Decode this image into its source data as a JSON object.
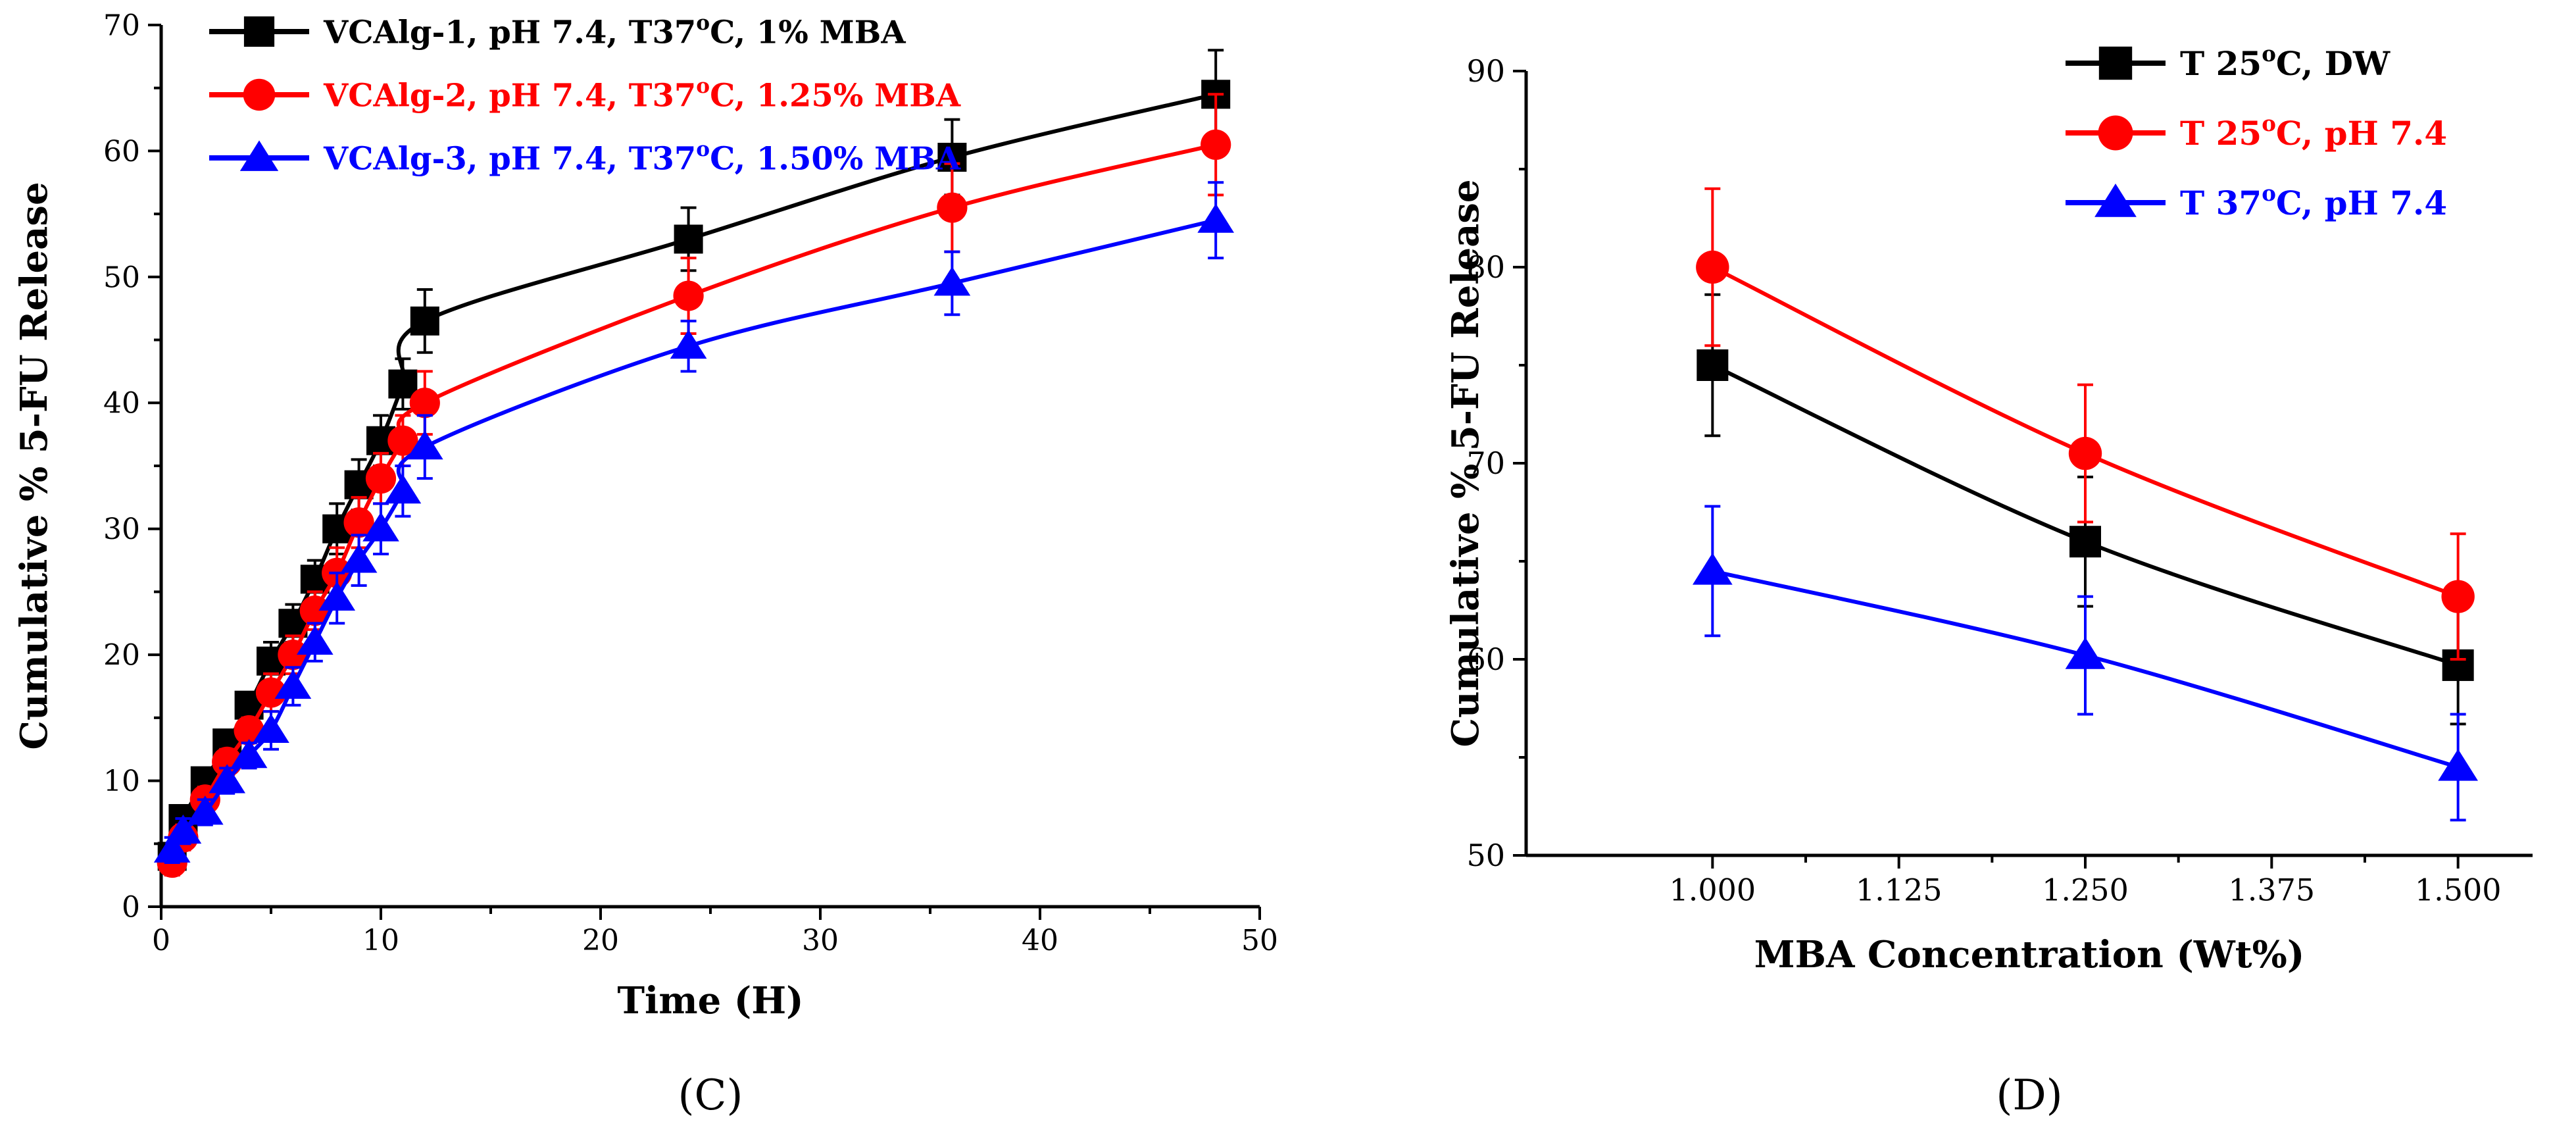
{
  "chart_data": [
    {
      "type": "line",
      "panel_label": "(C)",
      "xlabel": "Time (H)",
      "ylabel": "Cumulative % 5-FU Release",
      "xlim": [
        0,
        50
      ],
      "ylim": [
        0,
        70
      ],
      "x_ticks": [
        0,
        10,
        20,
        30,
        40,
        50
      ],
      "y_ticks": [
        0,
        10,
        20,
        30,
        40,
        50,
        60,
        70
      ],
      "x_tick_labels": [
        "0",
        "10",
        "20",
        "30",
        "40",
        "50"
      ],
      "y_tick_labels": [
        "0",
        "10",
        "20",
        "30",
        "40",
        "50",
        "60",
        "70"
      ],
      "grid": false,
      "legend_position": "top-left",
      "series": [
        {
          "name": "VCAlg-1, pH 7.4, T37°C, 1% MBA",
          "legend": {
            "pre": "VCAlg-1, pH 7.4, T37",
            "sup": "o",
            "post": "C, 1% MBA"
          },
          "color": "#000000",
          "marker": "square",
          "x": [
            0.5,
            1,
            2,
            3,
            4,
            5,
            6,
            7,
            8,
            9,
            10,
            11,
            12,
            24,
            36,
            48
          ],
          "y": [
            4,
            7,
            10,
            13,
            16,
            19.5,
            22.5,
            26,
            30,
            33.5,
            37,
            41.5,
            46.5,
            53,
            59.5,
            64.5
          ],
          "err": [
            1,
            1,
            1,
            1,
            1,
            1.5,
            1.5,
            1.5,
            2,
            2,
            2,
            2,
            2.5,
            2.5,
            3,
            3.5
          ]
        },
        {
          "name": "VCAlg-2, pH 7.4, T37°C, 1.25% MBA",
          "legend": {
            "pre": "VCAlg-2, pH 7.4, T37",
            "sup": "o",
            "post": "C, 1.25% MBA"
          },
          "color": "#ff0000",
          "marker": "circle",
          "x": [
            0.5,
            1,
            2,
            3,
            4,
            5,
            6,
            7,
            8,
            9,
            10,
            11,
            12,
            24,
            36,
            48
          ],
          "y": [
            3.5,
            5.5,
            8.5,
            11.5,
            14,
            17,
            20,
            23.5,
            26.5,
            30.5,
            34,
            37,
            40,
            48.5,
            55.5,
            60.5
          ],
          "err": [
            1,
            1,
            1,
            1,
            1,
            1.5,
            1.5,
            1.5,
            2,
            2,
            2,
            2,
            2.5,
            3,
            3.5,
            4
          ]
        },
        {
          "name": "VCAlg-3, pH 7.4, T37°C, 1.50% MBA",
          "legend": {
            "pre": "VCAlg-3, pH 7.4, T37",
            "sup": "o",
            "post": "C, 1.50% MBA"
          },
          "color": "#0000ff",
          "marker": "triangle",
          "x": [
            0.5,
            1,
            2,
            3,
            4,
            5,
            6,
            7,
            8,
            9,
            10,
            11,
            12,
            24,
            36,
            48
          ],
          "y": [
            4.5,
            6,
            7.5,
            10,
            12,
            14,
            17.5,
            21,
            24.5,
            27.5,
            30,
            33,
            36.5,
            44.5,
            49.5,
            54.5
          ],
          "err": [
            1,
            1,
            1,
            1,
            1,
            1.5,
            1.5,
            1.5,
            2,
            2,
            2,
            2,
            2.5,
            2,
            2.5,
            3
          ]
        }
      ]
    },
    {
      "type": "line",
      "panel_label": "(D)",
      "xlabel": "MBA Concentration (Wt%)",
      "ylabel": "Cumulative % 5-FU Release",
      "xlim": [
        0.875,
        1.55
      ],
      "ylim": [
        50,
        90
      ],
      "x_ticks": [
        1.0,
        1.125,
        1.25,
        1.375,
        1.5
      ],
      "y_ticks": [
        50,
        60,
        70,
        80,
        90
      ],
      "x_tick_labels": [
        "1.000",
        "1.125",
        "1.250",
        "1.375",
        "1.500"
      ],
      "y_tick_labels": [
        "50",
        "60",
        "70",
        "80",
        "90"
      ],
      "grid": false,
      "legend_position": "top-right",
      "series": [
        {
          "name": "T 25°C, DW",
          "legend": {
            "pre": "T 25",
            "sup": "o",
            "post": "C, DW"
          },
          "color": "#000000",
          "marker": "square",
          "x": [
            1.0,
            1.25,
            1.5
          ],
          "y": [
            75,
            66,
            59.7
          ],
          "err": [
            3.6,
            3.3,
            3
          ]
        },
        {
          "name": "T 25°C, pH 7.4",
          "legend": {
            "pre": "T 25",
            "sup": "o",
            "post": "C, pH 7.4"
          },
          "color": "#ff0000",
          "marker": "circle",
          "x": [
            1.0,
            1.25,
            1.5
          ],
          "y": [
            80,
            70.5,
            63.2
          ],
          "err": [
            4,
            3.5,
            3.2
          ]
        },
        {
          "name": "T 37°C, pH 7.4",
          "legend": {
            "pre": "T 37",
            "sup": "o",
            "post": "C, pH 7.4"
          },
          "color": "#0000ff",
          "marker": "triangle",
          "x": [
            1.0,
            1.25,
            1.5
          ],
          "y": [
            64.5,
            60.2,
            54.5
          ],
          "err": [
            3.3,
            3,
            2.7
          ]
        }
      ]
    }
  ]
}
